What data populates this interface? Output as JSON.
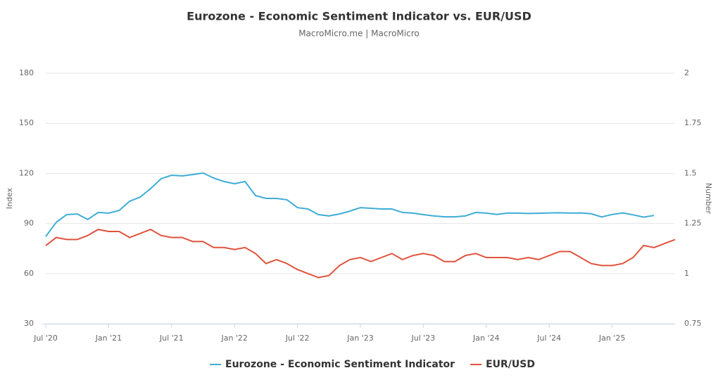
{
  "chart_data": {
    "type": "line",
    "title": "Eurozone - Economic Sentiment Indicator vs. EUR/USD",
    "subtitle": "MacroMicro.me | MacroMicro",
    "ylabel": "Index",
    "y2label": "Number",
    "x": [
      "2020-07",
      "2020-08",
      "2020-09",
      "2020-10",
      "2020-11",
      "2020-12",
      "2021-01",
      "2021-02",
      "2021-03",
      "2021-04",
      "2021-05",
      "2021-06",
      "2021-07",
      "2021-08",
      "2021-09",
      "2021-10",
      "2021-11",
      "2021-12",
      "2022-01",
      "2022-02",
      "2022-03",
      "2022-04",
      "2022-05",
      "2022-06",
      "2022-07",
      "2022-08",
      "2022-09",
      "2022-10",
      "2022-11",
      "2022-12",
      "2023-01",
      "2023-02",
      "2023-03",
      "2023-04",
      "2023-05",
      "2023-06",
      "2023-07",
      "2023-08",
      "2023-09",
      "2023-10",
      "2023-11",
      "2023-12",
      "2024-01",
      "2024-02",
      "2024-03",
      "2024-04",
      "2024-05",
      "2024-06",
      "2024-07",
      "2024-08",
      "2024-09",
      "2024-10",
      "2024-11",
      "2024-12",
      "2025-01",
      "2025-02",
      "2025-03",
      "2025-04",
      "2025-05",
      "2025-06",
      "2025-07"
    ],
    "xlim": [
      "2020-07",
      "2025-07"
    ],
    "xticks": [
      {
        "value": "2020-07",
        "label": "Jul '20"
      },
      {
        "value": "2021-01",
        "label": "Jan '21"
      },
      {
        "value": "2021-07",
        "label": "Jul '21"
      },
      {
        "value": "2022-01",
        "label": "Jan '22"
      },
      {
        "value": "2022-07",
        "label": "Jul '22"
      },
      {
        "value": "2023-01",
        "label": "Jan '23"
      },
      {
        "value": "2023-07",
        "label": "Jul '23"
      },
      {
        "value": "2024-01",
        "label": "Jan '24"
      },
      {
        "value": "2024-07",
        "label": "Jul '24"
      },
      {
        "value": "2025-01",
        "label": "Jan '25"
      }
    ],
    "ylim": [
      30,
      180
    ],
    "yticks": [
      30,
      60,
      90,
      120,
      150,
      180
    ],
    "y2lim": [
      0.75,
      2
    ],
    "y2ticks": [
      0.75,
      1,
      1.25,
      1.5,
      1.75,
      2
    ],
    "grid": true,
    "legend": "bottom",
    "series": [
      {
        "name": "Eurozone - Economic Sentiment Indicator",
        "color": "#3fadd6",
        "values": [
          82.2,
          90.7,
          95.3,
          95.7,
          92.4,
          96.6,
          96.2,
          97.8,
          103.3,
          105.8,
          110.9,
          116.8,
          118.9,
          118.5,
          119.3,
          120.2,
          117.2,
          115.1,
          113.8,
          115.1,
          106.7,
          105.0,
          105.0,
          104.2,
          99.5,
          98.7,
          95.3,
          94.5,
          95.7,
          97.4,
          99.5,
          99.1,
          98.7,
          98.7,
          96.6,
          96.2,
          95.3,
          94.5,
          94.0,
          94.0,
          94.5,
          96.6,
          96.2,
          95.4,
          96.2,
          96.2,
          96.0,
          96.1,
          96.3,
          96.4,
          96.2,
          96.3,
          95.8,
          93.9,
          95.4,
          96.3,
          95.2,
          93.8,
          94.8,
          null,
          null
        ]
      },
      {
        "name": "EUR/USD",
        "color": "#e0533c",
        "axis": "y2",
        "values": [
          1.14,
          1.18,
          1.17,
          1.17,
          1.19,
          1.22,
          1.21,
          1.21,
          1.18,
          1.2,
          1.22,
          1.19,
          1.18,
          1.18,
          1.16,
          1.16,
          1.13,
          1.13,
          1.12,
          1.13,
          1.1,
          1.05,
          1.07,
          1.05,
          1.02,
          1.0,
          0.98,
          0.99,
          1.04,
          1.07,
          1.08,
          1.06,
          1.08,
          1.1,
          1.07,
          1.09,
          1.1,
          1.09,
          1.06,
          1.06,
          1.09,
          1.1,
          1.08,
          1.08,
          1.08,
          1.07,
          1.08,
          1.07,
          1.09,
          1.11,
          1.11,
          1.08,
          1.05,
          1.04,
          1.04,
          1.05,
          1.08,
          1.14,
          1.13,
          1.15,
          1.17
        ]
      }
    ]
  }
}
